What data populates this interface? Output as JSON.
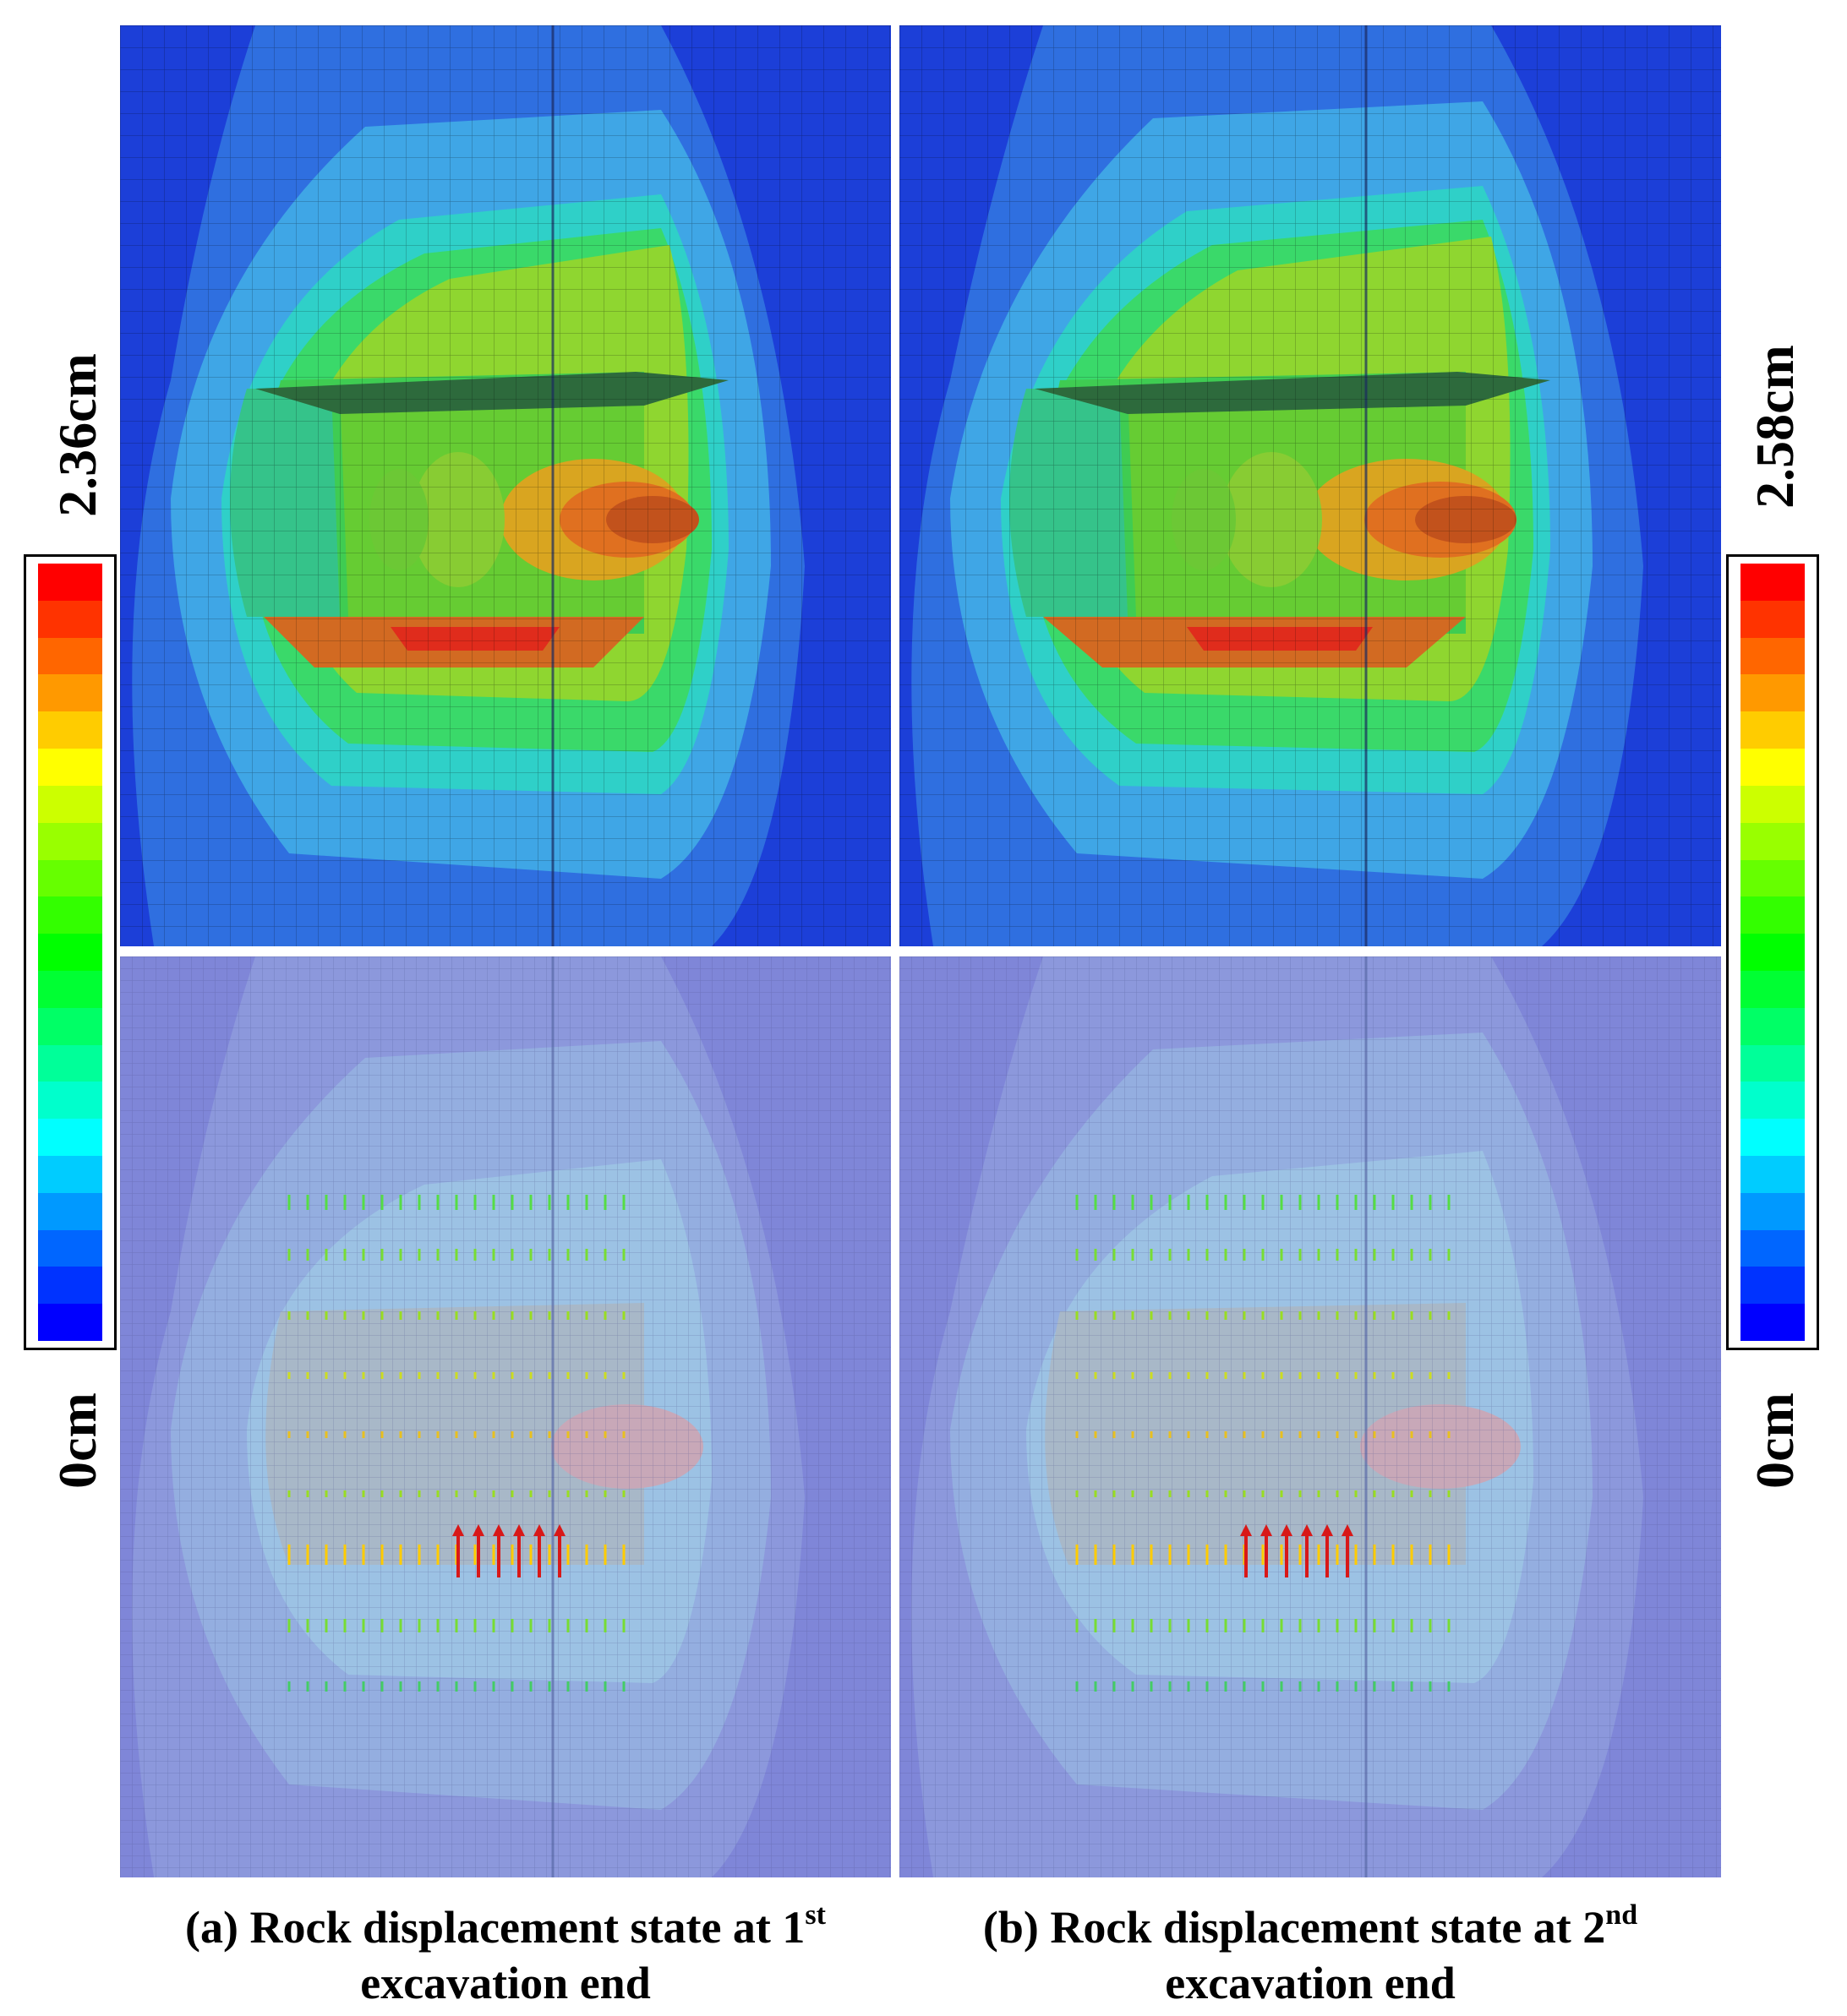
{
  "colorbar_left": {
    "max_label": "2.36cm",
    "min_label": "0cm"
  },
  "colorbar_right": {
    "max_label": "2.58cm",
    "min_label": "0cm"
  },
  "colorbar_palette": [
    "#ff0000",
    "#ff3300",
    "#ff6600",
    "#ff9900",
    "#ffcc00",
    "#ffff00",
    "#ccff00",
    "#99ff00",
    "#66ff00",
    "#33ff00",
    "#00ff00",
    "#00ff33",
    "#00ff66",
    "#00ff99",
    "#00ffcc",
    "#00ffff",
    "#00ccff",
    "#0099ff",
    "#0066ff",
    "#0033ff",
    "#0000ff"
  ],
  "caption_a": {
    "line1": "(a) Rock displacement state at 1",
    "sup": "st",
    "line2": "excavation end"
  },
  "caption_b": {
    "line1": "(b) Rock displacement state at 2",
    "sup": "nd",
    "line2": "excavation end"
  }
}
